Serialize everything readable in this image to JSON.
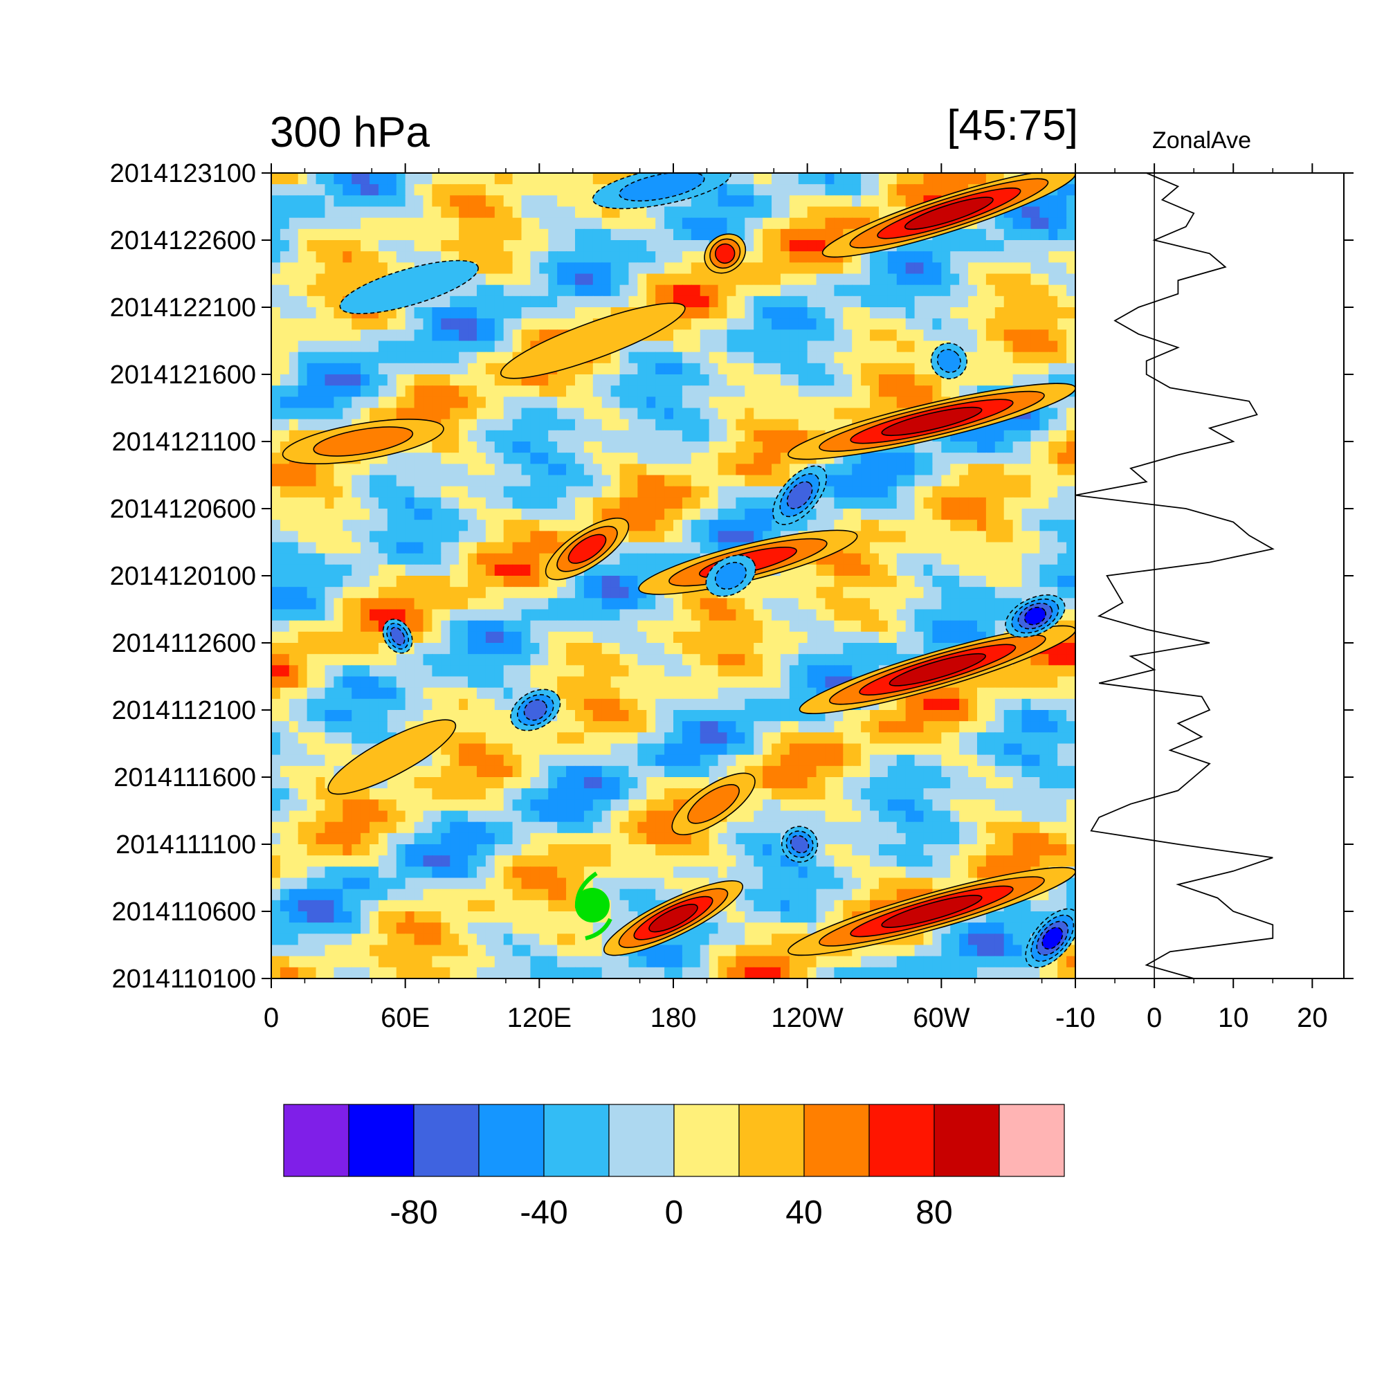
{
  "title_left": "300 hPa",
  "title_right": "[45:75]",
  "side_title": "ZonalAve",
  "chart_data": [
    {
      "type": "heatmap",
      "panel": "hovmoller",
      "title": "300 hPa",
      "subtitle": "[45:75]",
      "x_ticks": [
        "0",
        "60E",
        "120E",
        "180",
        "120W",
        "60W",
        "-10"
      ],
      "x_range": [
        "0",
        "-10"
      ],
      "y_ticks": [
        "2014110100",
        "2014110600",
        "2014111100",
        "2014111600",
        "2014112100",
        "2014112600",
        "2014120100",
        "2014120600",
        "2014121100",
        "2014121600",
        "2014122100",
        "2014122600",
        "2014123100"
      ],
      "y_range": [
        "2014110100",
        "2014123100"
      ],
      "marker": {
        "label": "tropical-cyclone-symbol",
        "color": "#00e000",
        "lon": "142E",
        "time": "2014110500"
      },
      "anomaly_bands": [
        {
          "lon_start": 225,
          "lon_end": 350,
          "day_start": 2,
          "day_end": 8,
          "value": 90
        },
        {
          "lon_start": 145,
          "lon_end": 205,
          "day_start": 2,
          "day_end": 7,
          "value": 100
        },
        {
          "lon_start": 230,
          "lon_end": 350,
          "day_start": 20,
          "day_end": 26,
          "value": 90
        },
        {
          "lon_start": 160,
          "lon_end": 255,
          "day_start": 29,
          "day_end": 33,
          "value": 85
        },
        {
          "lon_start": 225,
          "lon_end": 350,
          "day_start": 39,
          "day_end": 44,
          "value": 90
        },
        {
          "lon_start": 240,
          "lon_end": 350,
          "day_start": 54,
          "day_end": 60,
          "value": 95
        },
        {
          "lon_start": 120,
          "lon_end": 155,
          "day_start": 30,
          "day_end": 34,
          "value": 70
        },
        {
          "lon_start": 5,
          "lon_end": 75,
          "day_start": 39,
          "day_end": 41,
          "value": 60
        },
        {
          "lon_start": 25,
          "lon_end": 80,
          "day_start": 14,
          "day_end": 19,
          "value": 45
        },
        {
          "lon_start": 175,
          "lon_end": 210,
          "day_start": 11,
          "day_end": 15,
          "value": 60
        },
        {
          "lon_start": 190,
          "lon_end": 205,
          "day_start": 53,
          "day_end": 55,
          "value": 70
        },
        {
          "lon_start": 100,
          "lon_end": 180,
          "day_start": 45,
          "day_end": 50,
          "value": 35
        },
        {
          "lon_start": 330,
          "lon_end": 350,
          "day_start": 1,
          "day_end": 5,
          "value": -95
        },
        {
          "lon_start": 320,
          "lon_end": 345,
          "day_start": 26,
          "day_end": 28,
          "value": -90
        },
        {
          "lon_start": 220,
          "lon_end": 240,
          "day_start": 34,
          "day_end": 38,
          "value": -70
        },
        {
          "lon_start": 105,
          "lon_end": 125,
          "day_start": 19,
          "day_end": 21,
          "value": -75
        },
        {
          "lon_start": 50,
          "lon_end": 60,
          "day_start": 25,
          "day_end": 26,
          "value": -70
        },
        {
          "lon_start": 190,
          "lon_end": 210,
          "day_start": 29,
          "day_end": 31,
          "value": -60
        },
        {
          "lon_start": 225,
          "lon_end": 235,
          "day_start": 9,
          "day_end": 11,
          "value": -70
        },
        {
          "lon_start": 290,
          "lon_end": 300,
          "day_start": 45,
          "day_end": 47,
          "value": -65
        },
        {
          "lon_start": 140,
          "lon_end": 200,
          "day_start": 58,
          "day_end": 60,
          "value": -55
        },
        {
          "lon_start": 30,
          "lon_end": 90,
          "day_start": 50,
          "day_end": 53,
          "value": -45
        }
      ]
    },
    {
      "type": "line",
      "panel": "zonal-average",
      "title": "ZonalAve",
      "x_ticks": [
        "-10",
        "0",
        "10",
        "20"
      ],
      "xlim": [
        -10,
        24
      ],
      "y_range": [
        "2014110100",
        "2014123100"
      ],
      "series": [
        {
          "values": [
            [
              5,
              0
            ],
            [
              -1,
              1
            ],
            [
              2,
              2
            ],
            [
              15,
              3
            ],
            [
              15,
              4
            ],
            [
              10,
              5
            ],
            [
              8,
              6
            ],
            [
              3,
              7
            ],
            [
              10,
              8
            ],
            [
              15,
              9
            ],
            [
              3,
              10
            ],
            [
              -8,
              11
            ],
            [
              -7,
              12
            ],
            [
              -3,
              13
            ],
            [
              3,
              14
            ],
            [
              5,
              15
            ],
            [
              7,
              16
            ],
            [
              2,
              17
            ],
            [
              6,
              18
            ],
            [
              3,
              19
            ],
            [
              7,
              20
            ],
            [
              6,
              21
            ],
            [
              -7,
              22
            ],
            [
              0,
              23
            ],
            [
              -3,
              24
            ],
            [
              7,
              25
            ],
            [
              -1,
              26
            ],
            [
              -7,
              27
            ],
            [
              -4,
              28
            ],
            [
              -5,
              29
            ],
            [
              -6,
              30
            ],
            [
              7,
              31
            ],
            [
              15,
              32
            ],
            [
              12,
              33
            ],
            [
              10,
              34
            ],
            [
              4,
              35
            ],
            [
              -10,
              36
            ],
            [
              -1,
              37
            ],
            [
              -3,
              38
            ],
            [
              3,
              39
            ],
            [
              10,
              40
            ],
            [
              7,
              41
            ],
            [
              13,
              42
            ],
            [
              12,
              43
            ],
            [
              2,
              44
            ],
            [
              -1,
              45
            ],
            [
              -1,
              46
            ],
            [
              3,
              47
            ],
            [
              -2,
              48
            ],
            [
              -5,
              49
            ],
            [
              -2,
              50
            ],
            [
              3,
              51
            ],
            [
              3,
              52
            ],
            [
              9,
              53
            ],
            [
              7,
              54
            ],
            [
              0,
              55
            ],
            [
              4,
              56
            ],
            [
              5,
              57
            ],
            [
              1,
              58
            ],
            [
              3,
              59
            ],
            [
              -1,
              60
            ]
          ]
        }
      ]
    }
  ],
  "colorbar": {
    "colors": [
      "#7f1fe8",
      "#0000ff",
      "#3f63e0",
      "#1596ff",
      "#33bcf5",
      "#add8f0",
      "#fff07a",
      "#ffbe1a",
      "#ff7f00",
      "#ff1500",
      "#c80000",
      "#ffb4b4"
    ],
    "bounds": [
      -100,
      -80,
      -60,
      -40,
      -20,
      0,
      20,
      40,
      60,
      80,
      100
    ],
    "tick_labels": [
      "-80",
      "-40",
      "0",
      "40",
      "80"
    ]
  }
}
